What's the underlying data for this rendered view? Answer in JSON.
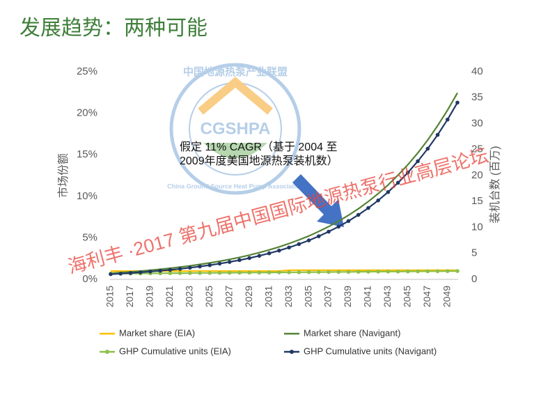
{
  "chart_data": {
    "type": "line",
    "title": "发展趋势：两种可能",
    "annotation": [
      "假定 11% CAGR（基于 2004 至",
      "2009年度美国地源热泵装机数）"
    ],
    "y_label": "市场份额",
    "y2_label": "装机台数 (百万)",
    "categories": [
      "2015",
      null,
      "2017",
      null,
      "2019",
      null,
      "2021",
      null,
      "2023",
      null,
      "2025",
      null,
      "2027",
      null,
      "2029",
      null,
      "2031",
      null,
      "2033",
      null,
      "2035",
      null,
      "2037",
      null,
      "2039",
      null,
      "2041",
      null,
      "2043",
      null,
      "2045",
      null,
      "2047",
      null,
      "2049",
      null
    ],
    "ylim": [
      0,
      25
    ],
    "yticks": [
      {
        "value": 0,
        "label": "0%"
      },
      {
        "value": 5,
        "label": "5%"
      },
      {
        "value": 10,
        "label": "10%"
      },
      {
        "value": 15,
        "label": "15%"
      },
      {
        "value": 20,
        "label": "20%"
      },
      {
        "value": 25,
        "label": "25%"
      }
    ],
    "y2lim": [
      0,
      40
    ],
    "y2ticks": [
      0,
      5,
      10,
      15,
      20,
      25,
      30,
      35,
      40
    ],
    "series": [
      {
        "name": "Market share (EIA)",
        "color": "#ffc000",
        "marker": false,
        "values": [
          1.0,
          1.0,
          1.0,
          1.0,
          1.0,
          1.0,
          1.0,
          1.0,
          1.0,
          1.0,
          1.0,
          1.0,
          1.0,
          1.0,
          1.0,
          1.0,
          1.0,
          1.0,
          1.1,
          1.1,
          1.1,
          1.1,
          1.1,
          1.1,
          1.1,
          1.1,
          1.1,
          1.1,
          1.1,
          1.1,
          1.1,
          1.1,
          1.1,
          1.1,
          1.1,
          1.1
        ]
      },
      {
        "name": "Market share (Navigant)",
        "color": "#548235",
        "marker": false,
        "values": [
          0.75,
          0.83,
          0.91,
          1.0,
          1.11,
          1.22,
          1.34,
          1.48,
          1.63,
          1.8,
          1.98,
          2.18,
          2.41,
          2.65,
          2.92,
          3.22,
          3.55,
          3.91,
          4.31,
          4.75,
          5.23,
          5.77,
          6.35,
          7.0,
          7.72,
          8.5,
          9.37,
          10.33,
          11.38,
          12.54,
          13.82,
          15.23,
          16.78,
          18.5,
          20.38,
          22.46
        ]
      },
      {
        "name": "GHP Cumulative units (EIA)",
        "color": "#8cc04b",
        "marker": true,
        "axis": "y2",
        "values": [
          1.1,
          1.11,
          1.13,
          1.14,
          1.16,
          1.17,
          1.19,
          1.2,
          1.21,
          1.23,
          1.24,
          1.26,
          1.27,
          1.29,
          1.3,
          1.31,
          1.33,
          1.34,
          1.36,
          1.37,
          1.39,
          1.4,
          1.41,
          1.43,
          1.44,
          1.46,
          1.47,
          1.49,
          1.5,
          1.51,
          1.53,
          1.54,
          1.56,
          1.57,
          1.59,
          1.6
        ]
      },
      {
        "name": "GHP Cumulative units (Navigant)",
        "color": "#203864",
        "marker": true,
        "axis": "y2",
        "values": [
          1.0,
          1.1,
          1.22,
          1.35,
          1.5,
          1.65,
          1.83,
          2.02,
          2.24,
          2.48,
          2.74,
          3.03,
          3.35,
          3.71,
          4.1,
          4.54,
          5.02,
          5.55,
          6.14,
          6.79,
          7.51,
          8.31,
          9.19,
          10.16,
          11.24,
          12.43,
          13.75,
          15.21,
          16.82,
          18.61,
          20.58,
          22.76,
          25.17,
          27.84,
          30.79,
          34.06
        ]
      }
    ]
  },
  "watermark": {
    "stamp_top": "中国地源热泵产业联盟",
    "stamp_logo": "CGSHPA",
    "stamp_bottom": "China Ground Source Heat Pump Association",
    "banner": "海利丰 ·2017  第九届中国国际地源热泵行业高层论坛"
  }
}
